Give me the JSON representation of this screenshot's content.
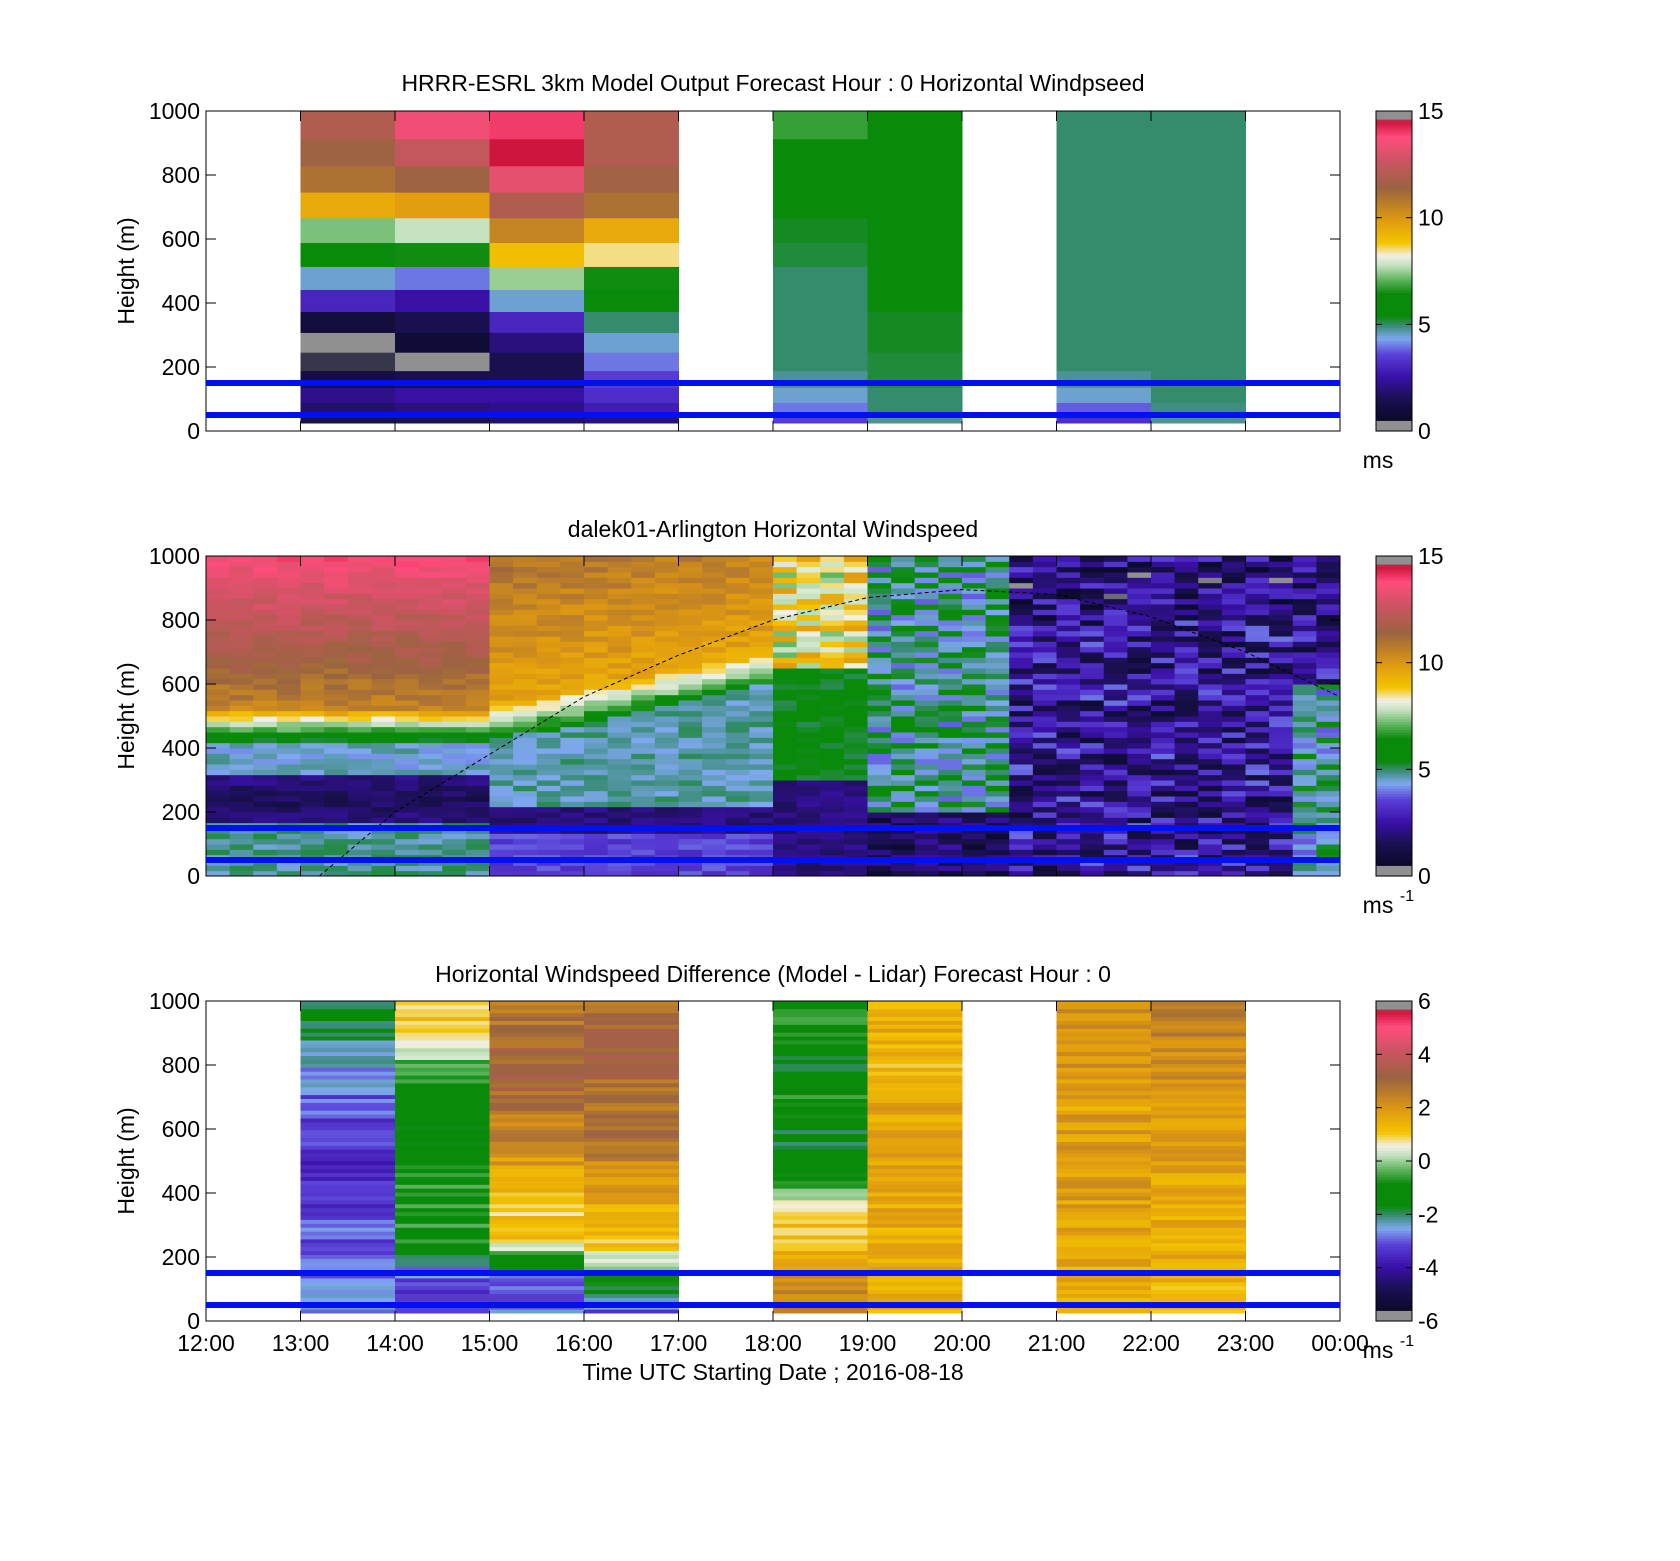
{
  "chart_data": [
    {
      "type": "heatmap",
      "title": "HRRR-ESRL 3km Model Output   Forecast Hour : 0 Horizontal Windpseed",
      "ylabel": "Height (m)",
      "ylim": [
        0,
        1000
      ],
      "yticks": [
        "0",
        "200",
        "400",
        "600",
        "800",
        "1000"
      ],
      "colorbar": {
        "range": [
          0,
          15
        ],
        "ticks": [
          "0",
          "5",
          "10",
          "15"
        ],
        "unit": "ms",
        "unit_sup": ""
      },
      "reference_lines_m": [
        150,
        50
      ],
      "hour_columns": [
        {
          "start": 1,
          "v": [
            1.5,
            1.8,
            2.2,
            1.2,
            0.5,
            0.4,
            1.0,
            3.0,
            4.5,
            5.8,
            7.3,
            9.5,
            11,
            11.5,
            12
          ]
        },
        {
          "start": 2,
          "v": [
            1.6,
            2.0,
            2.5,
            1.4,
            0.3,
            0.8,
            1.5,
            2.5,
            4.0,
            6.5,
            7.8,
            9.8,
            11.5,
            12.5,
            13.5
          ]
        },
        {
          "start": 3,
          "v": [
            1.8,
            2.2,
            2.5,
            1.5,
            1.5,
            2.0,
            3.0,
            4.5,
            7.5,
            9.0,
            10.5,
            12,
            13.2,
            14.5,
            14
          ]
        },
        {
          "start": 4,
          "v": [
            2.0,
            2.8,
            3.2,
            3.5,
            4.0,
            4.5,
            5.0,
            5.5,
            6.5,
            8.5,
            9.5,
            11,
            11.6,
            12,
            12
          ]
        },
        {
          "start": 6,
          "v": [
            3.5,
            4.0,
            4.5,
            4.8,
            5.0,
            5.0,
            5.0,
            5.0,
            5.0,
            5.2,
            5.3,
            5.4,
            5.7,
            6.2,
            6.8
          ]
        },
        {
          "start": 7,
          "v": [
            4.8,
            5.0,
            5.0,
            5.2,
            5.2,
            5.3,
            5.3,
            5.4,
            5.4,
            5.5,
            5.5,
            5.6,
            5.6,
            5.7,
            5.8
          ]
        },
        {
          "start": 9,
          "v": [
            3.2,
            3.8,
            4.5,
            4.8,
            5.0,
            5.0,
            5.0,
            5.0,
            5.0,
            5.0,
            5.0,
            5.0,
            5.0,
            5.0,
            5.0
          ]
        },
        {
          "start": 10,
          "v": [
            4.8,
            4.9,
            5.0,
            5.0,
            5.0,
            5.0,
            5.0,
            5.0,
            5.0,
            5.0,
            5.0,
            5.0,
            5.0,
            5.0,
            5.0
          ]
        }
      ]
    },
    {
      "type": "heatmap",
      "title": "dalek01-Arlington  Horizontal Windspeed",
      "ylabel": "Height (m)",
      "ylim": [
        0,
        1000
      ],
      "yticks": [
        "0",
        "200",
        "400",
        "600",
        "800",
        "1000"
      ],
      "colorbar": {
        "range": [
          0,
          15
        ],
        "ticks": [
          "0",
          "5",
          "10",
          "15"
        ],
        "unit": "ms",
        "unit_sup": "-1"
      },
      "reference_lines_m": [
        150,
        50
      ],
      "xlim_hours": [
        12,
        24
      ],
      "time_slices": 48,
      "dashed_curve_points": [
        [
          13.2,
          0
        ],
        [
          14,
          200
        ],
        [
          15,
          380
        ],
        [
          16,
          560
        ],
        [
          17,
          690
        ],
        [
          18,
          800
        ],
        [
          19,
          870
        ],
        [
          20,
          895
        ],
        [
          21,
          880
        ],
        [
          22,
          810
        ],
        [
          23,
          700
        ],
        [
          24,
          560
        ]
      ]
    },
    {
      "type": "heatmap",
      "title": "Horizontal Windspeed Difference (Model - Lidar) Forecast Hour : 0",
      "ylabel": "Height (m)",
      "xlabel": "Time UTC  Starting Date ; 2016-08-18",
      "ylim": [
        0,
        1000
      ],
      "yticks": [
        "0",
        "200",
        "400",
        "600",
        "800",
        "1000"
      ],
      "xticks": [
        "12:00",
        "13:00",
        "14:00",
        "15:00",
        "16:00",
        "17:00",
        "18:00",
        "19:00",
        "20:00",
        "21:00",
        "22:00",
        "23:00",
        "00:00"
      ],
      "colorbar": {
        "range": [
          -6,
          6
        ],
        "ticks": [
          "-6",
          "-4",
          "-2",
          "0",
          "2",
          "4",
          "6"
        ],
        "unit": "ms",
        "unit_sup": "-1"
      },
      "reference_lines_m": [
        150,
        50
      ],
      "hour_columns": [
        {
          "start": 1,
          "base": [
            -2.6,
            -2.9,
            -3.0,
            -3.2,
            -3.5,
            -3.3,
            -3.0,
            -2.6,
            -2.0,
            -1.5
          ]
        },
        {
          "start": 2,
          "base": [
            -3.2,
            -3.0,
            -1.0,
            -0.6,
            -0.8,
            -1.6,
            -1.4,
            -0.5,
            0.8,
            1.2
          ]
        },
        {
          "start": 3,
          "base": [
            -2.8,
            -3.0,
            1.0,
            1.2,
            1.8,
            2.3,
            2.8,
            3.2,
            3.0,
            2.5
          ]
        },
        {
          "start": 4,
          "base": [
            -3.0,
            -0.8,
            1.2,
            1.5,
            2.2,
            2.8,
            2.6,
            3.2,
            3.0,
            2.8
          ]
        },
        {
          "start": 6,
          "base": [
            2.3,
            2.0,
            1.2,
            0.9,
            -1.0,
            -1.8,
            -0.5,
            -1.6,
            -1.0,
            -0.8
          ]
        },
        {
          "start": 7,
          "base": [
            1.4,
            1.4,
            1.5,
            1.6,
            1.8,
            1.6,
            1.7,
            1.3,
            1.5,
            1.5
          ]
        },
        {
          "start": 9,
          "base": [
            1.3,
            1.5,
            1.6,
            1.8,
            1.8,
            1.9,
            1.7,
            2.0,
            2.2,
            2.3
          ]
        },
        {
          "start": 10,
          "base": [
            1.2,
            1.4,
            1.5,
            1.6,
            1.8,
            2.0,
            1.9,
            2.2,
            2.4,
            2.4
          ]
        }
      ]
    }
  ]
}
